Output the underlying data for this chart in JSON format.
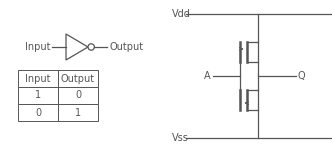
{
  "bg_color": "#ffffff",
  "line_color": "#555555",
  "table_data": [
    [
      "Input",
      "Output"
    ],
    [
      "1",
      "0"
    ],
    [
      "0",
      "1"
    ]
  ],
  "input_label": "Input",
  "output_label": "Output",
  "vdd_label": "Vdd",
  "vss_label": "Vss",
  "a_label": "A",
  "q_label": "Q",
  "font_size": 7,
  "lw": 0.9
}
